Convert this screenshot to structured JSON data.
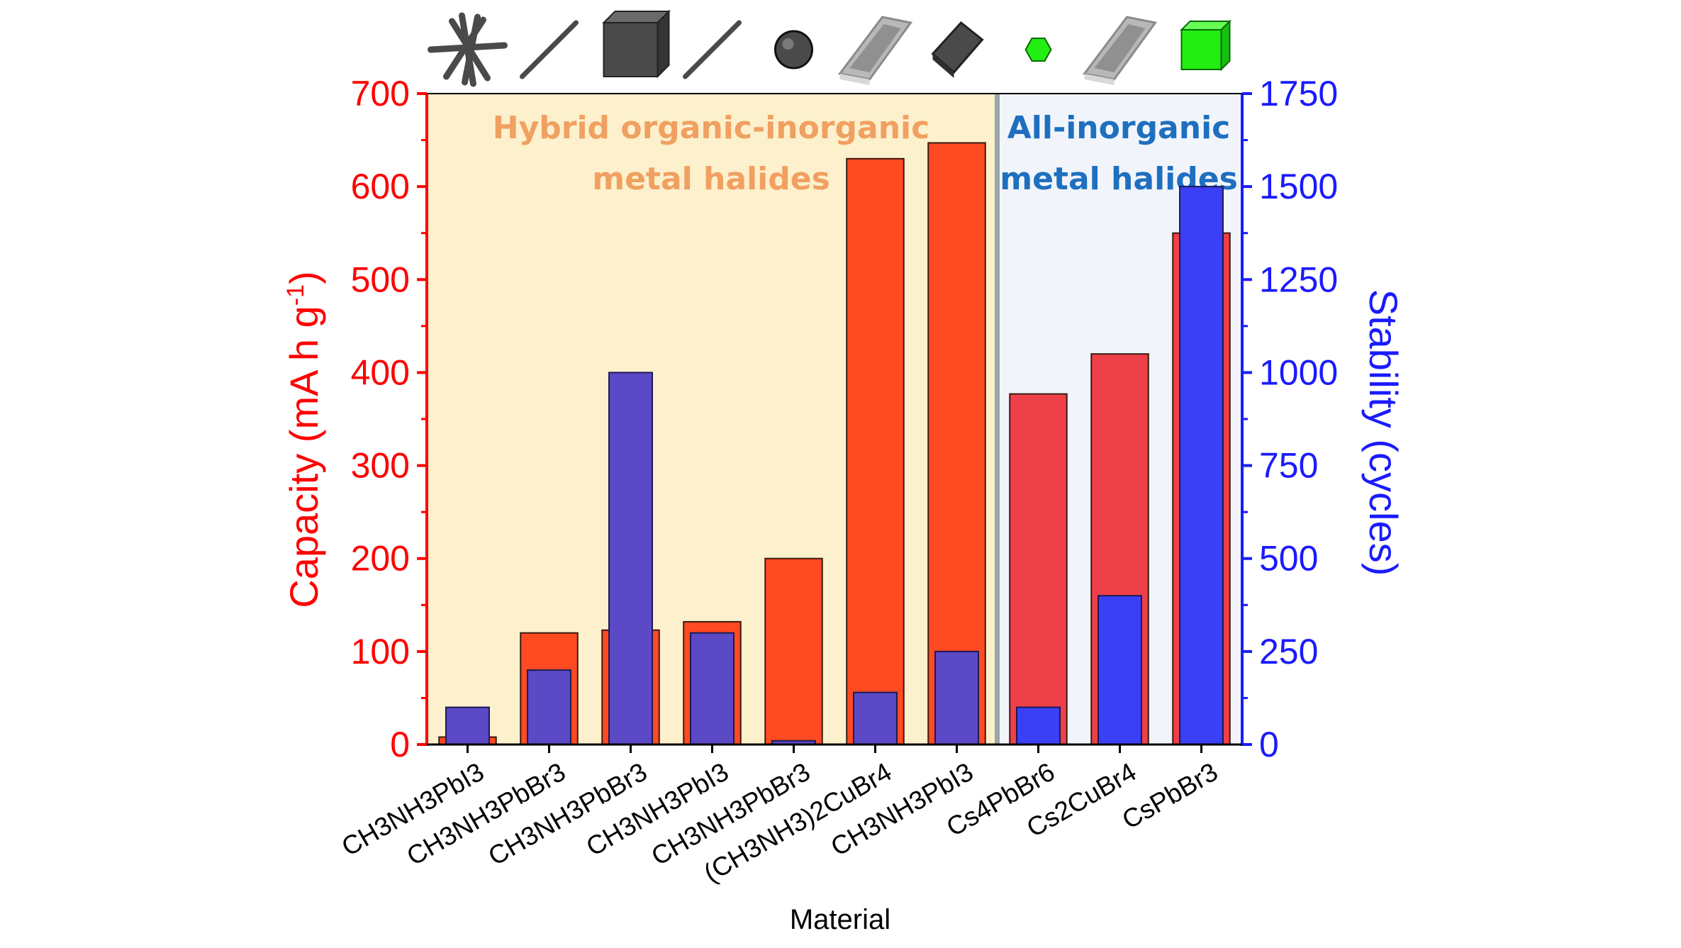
{
  "chart_data": {
    "type": "bar",
    "xlabel": "Material",
    "ylabel_left": "Capacity (mA h g-1)",
    "ylabel_left_parts": {
      "main": "Capacity (mA h g",
      "sup": "-1",
      "close": ")"
    },
    "ylabel_right": "Stability (cycles)",
    "ylim_left": [
      0,
      700
    ],
    "ylim_right": [
      0,
      1750
    ],
    "yticks_left": [
      "0",
      "100",
      "200",
      "300",
      "400",
      "500",
      "600",
      "700"
    ],
    "yticks_right": [
      "0",
      "250",
      "500",
      "750",
      "1000",
      "1250",
      "1500",
      "1750"
    ],
    "categories": [
      "CH3NH3PbI3",
      "CH3NH3PbBr3",
      "CH3NH3PbBr3",
      "CH3NH3PbI3",
      "CH3NH3PbBr3",
      "(CH3NH3)2CuBr4",
      "CH3NH3PbI3",
      "Cs4PbBr6",
      "Cs2CuBr4",
      "CsPbBr3"
    ],
    "series": [
      {
        "axis": "left",
        "values": [
          8,
          120,
          123,
          132,
          200,
          630,
          647,
          377,
          420,
          550
        ],
        "colors": [
          "#ff4a22",
          "#ff4a22",
          "#ff4a22",
          "#ff4a22",
          "#ff4a22",
          "#ff4a22",
          "#ff4a22",
          "#ee4048",
          "#ee4048",
          "#ee4048"
        ]
      },
      {
        "axis": "right",
        "values": [
          100,
          200,
          1000,
          300,
          10,
          140,
          250,
          100,
          400,
          1500
        ],
        "colors": [
          "#5b49c6",
          "#5b49c6",
          "#5b49c6",
          "#5b49c6",
          "#5b49c6",
          "#5b49c6",
          "#5b49c6",
          "#3a40f5",
          "#3a40f5",
          "#3a40f5"
        ]
      }
    ],
    "regions": [
      {
        "label_lines": [
          "Hybrid organic-inorganic",
          "metal halides"
        ],
        "start_index": 0,
        "end_index": 6,
        "fill": "#fdf0cc",
        "label_color": "#f0a060"
      },
      {
        "label_lines": [
          "All-inorganic",
          "metal halides"
        ],
        "start_index": 7,
        "end_index": 9,
        "fill": "#f1f5fb",
        "label_color": "#1f6fbf"
      }
    ],
    "morphology_icons": [
      "star-cluster-icon",
      "rod-icon",
      "cube-icon",
      "rod-icon",
      "sphere-icon",
      "plate-icon",
      "diamond-prism-icon",
      "hexagon-icon",
      "plate-icon",
      "cube-icon"
    ],
    "icon_colors": {
      "dark": "#4a4a4a",
      "green": "#22ee11",
      "plate": "#b8b8b8"
    },
    "axis_colors": {
      "left": "#ff0000",
      "right": "#1a1aff"
    }
  }
}
